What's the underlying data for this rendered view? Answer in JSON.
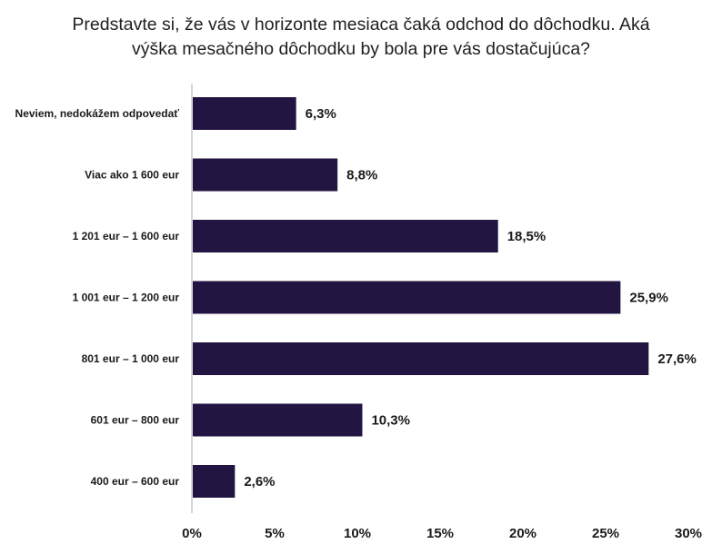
{
  "chart_data": {
    "type": "bar",
    "orientation": "horizontal",
    "title_lines": [
      "Predstavte si, že vás v horizonte mesiaca čaká odchod do dôchodku. Aká",
      "výška mesačného dôchodku by bola pre vás dostačujúca?"
    ],
    "categories": [
      "Neviem, nedokážem odpovedať",
      "Viac ako 1 600 eur",
      "1 201 eur – 1 600 eur",
      "1 001 eur – 1 200 eur",
      "801 eur – 1 000 eur",
      "601 eur – 800 eur",
      "400 eur – 600 eur"
    ],
    "values": [
      6.3,
      8.8,
      18.5,
      25.9,
      27.6,
      10.3,
      2.6
    ],
    "value_labels": [
      "6,3%",
      "8,8%",
      "18,5%",
      "25,9%",
      "27,6%",
      "10,3%",
      "2,6%"
    ],
    "xlim": [
      0,
      30
    ],
    "x_ticks": [
      0,
      5,
      10,
      15,
      20,
      25,
      30
    ],
    "x_tick_labels": [
      "0%",
      "5%",
      "10%",
      "15%",
      "20%",
      "25%",
      "30%"
    ],
    "grid": false,
    "legend": "none",
    "bar_color": "#231541",
    "axis_color": "#c8c8c8"
  }
}
